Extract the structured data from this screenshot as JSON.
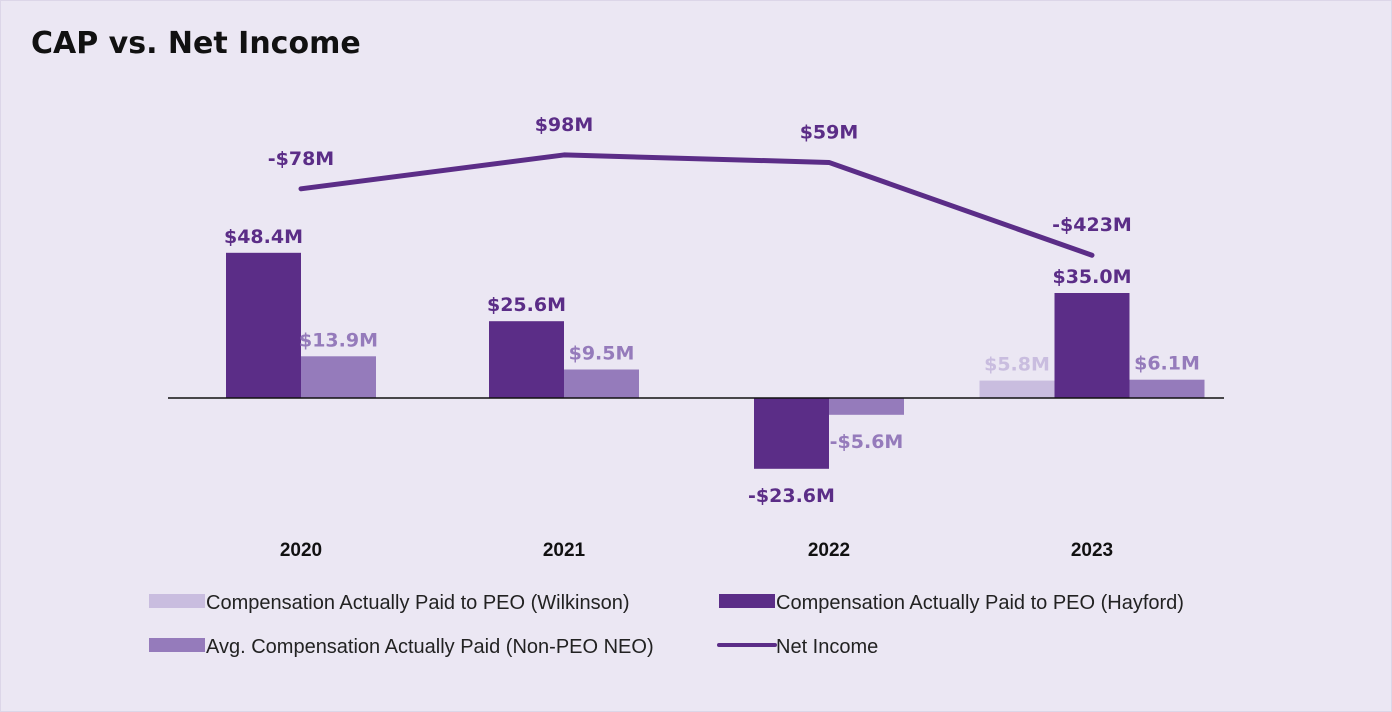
{
  "chart_data": {
    "type": "bar",
    "title": "CAP vs. Net Income",
    "categories": [
      "2020",
      "2021",
      "2022",
      "2023"
    ],
    "series": [
      {
        "name": "Compensation Actually Paid to PEO (Wilkinson)",
        "kind": "bar",
        "color": "#c9bddf",
        "label_color": "#c9bddf",
        "values": [
          null,
          null,
          null,
          5.8
        ],
        "labels": [
          "",
          "",
          "",
          "$5.8M"
        ]
      },
      {
        "name": "Compensation Actually Paid to PEO (Hayford)",
        "kind": "bar",
        "color": "#5b2d87",
        "label_color": "#5b2d87",
        "values": [
          48.4,
          25.6,
          -23.6,
          35.0
        ],
        "labels": [
          "$48.4M",
          "$25.6M",
          "-$23.6M",
          "$35.0M"
        ]
      },
      {
        "name": "Avg. Compensation Actually Paid (Non-PEO NEO)",
        "kind": "bar",
        "color": "#957bbb",
        "label_color": "#957bbb",
        "values": [
          13.9,
          9.5,
          -5.6,
          6.1
        ],
        "labels": [
          "$13.9M",
          "$9.5M",
          "-$5.6M",
          "$6.1M"
        ]
      },
      {
        "name": "Net Income",
        "kind": "line",
        "color": "#5b2d87",
        "label_color": "#5b2d87",
        "values": [
          -78,
          98,
          59,
          -423
        ],
        "labels": [
          "-$78M",
          "$98M",
          "$59M",
          "-$423M"
        ]
      }
    ],
    "legend_position": "bottom",
    "grid": false
  }
}
